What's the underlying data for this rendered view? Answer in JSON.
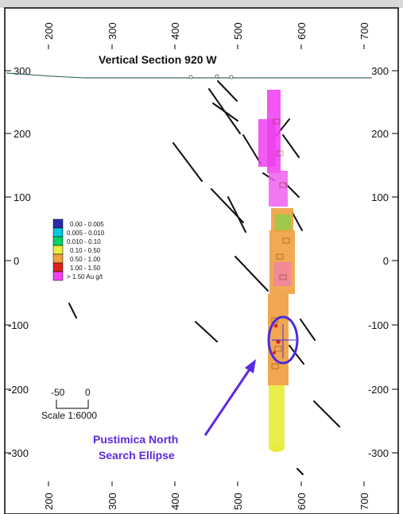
{
  "title": "Vertical Section 920 W",
  "x_ticks": [
    "200",
    "300",
    "400",
    "500",
    "600",
    "700"
  ],
  "y_ticks": [
    "300",
    "200",
    "100",
    "0",
    "-100",
    "-200",
    "-300"
  ],
  "legend": [
    {
      "label": "0.00 - 0.005",
      "color": "#2a2aa8"
    },
    {
      "label": "0.005 - 0.010",
      "color": "#00c8e0"
    },
    {
      "label": "0.010 - 0.10",
      "color": "#00d26a"
    },
    {
      "label": "0.10 - 0.50",
      "color": "#e8ee40"
    },
    {
      "label": "0.50 - 1.00",
      "color": "#f0a040"
    },
    {
      "label": "1.00 - 1.50",
      "color": "#e02020"
    },
    {
      "label": "> 1.50 Au g/t",
      "color": "#f040f0"
    }
  ],
  "scale": {
    "left": "-50",
    "right": "0",
    "label": "Scale 1:6000"
  },
  "annotation": {
    "line1": "Pustimica North",
    "line2": "Search Ellipse",
    "color": "#5a2be0"
  },
  "colors": {
    "frame": "#000000",
    "topbar": "#d8d8d8",
    "drillhole": "#111111",
    "surface": "#3a6a6a",
    "ellipse": "#4a2ae0"
  }
}
